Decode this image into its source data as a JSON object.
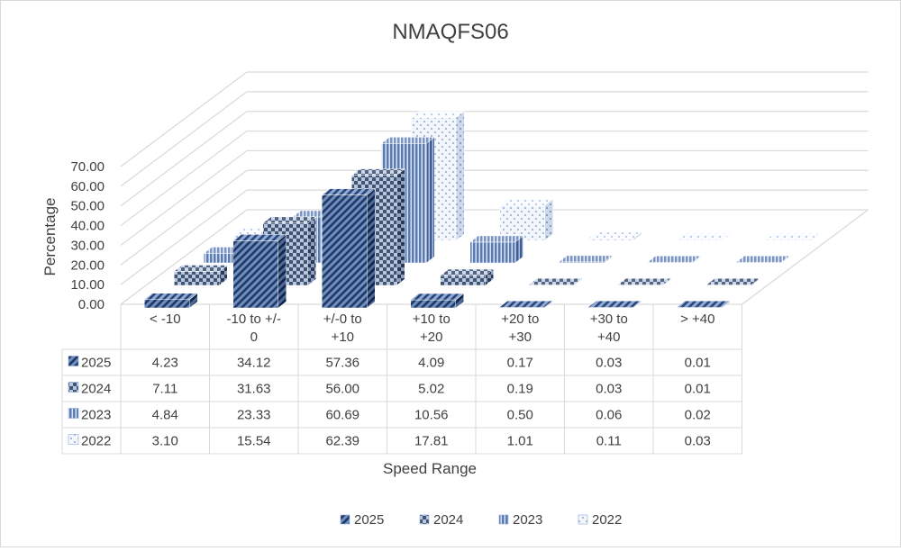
{
  "chart_data": {
    "type": "bar",
    "variant": "3d-clustered-column-with-data-table",
    "title": "NMAQFS06",
    "xlabel": "Speed Range",
    "ylabel": "Percentage",
    "ylim": [
      0,
      70
    ],
    "yticks": [
      "0.00",
      "10.00",
      "20.00",
      "30.00",
      "40.00",
      "50.00",
      "60.00",
      "70.00"
    ],
    "categories": [
      "< -10",
      "-10 to +/-0",
      "+/-0 to +10",
      "+10 to +20",
      "+20 to +30",
      "+30 to +40",
      "> +40"
    ],
    "category_lines": [
      [
        "< -10"
      ],
      [
        "-10 to +/-",
        "0"
      ],
      [
        "+/-0 to",
        "+10"
      ],
      [
        "+10 to",
        "+20"
      ],
      [
        "+20 to",
        "+30"
      ],
      [
        "+30 to",
        "+40"
      ],
      [
        "> +40"
      ]
    ],
    "series": [
      {
        "name": "2025",
        "values": [
          4.23,
          34.12,
          57.36,
          4.09,
          0.17,
          0.03,
          0.01
        ],
        "display": [
          "4.23",
          "34.12",
          "57.36",
          "4.09",
          "0.17",
          "0.03",
          "0.01"
        ],
        "pattern": "diagonal",
        "color": "#203864"
      },
      {
        "name": "2024",
        "values": [
          7.11,
          31.63,
          56.0,
          5.02,
          0.19,
          0.03,
          0.01
        ],
        "display": [
          "7.11",
          "31.63",
          "56.00",
          "5.02",
          "0.19",
          "0.03",
          "0.01"
        ],
        "pattern": "checker",
        "color": "#44546a"
      },
      {
        "name": "2023",
        "values": [
          4.84,
          23.33,
          60.69,
          10.56,
          0.5,
          0.06,
          0.02
        ],
        "display": [
          "4.84",
          "23.33",
          "60.69",
          "10.56",
          "0.50",
          "0.06",
          "0.02"
        ],
        "pattern": "vertical-stripes",
        "color": "#8faadc"
      },
      {
        "name": "2022",
        "values": [
          3.1,
          15.54,
          62.39,
          17.81,
          1.01,
          0.11,
          0.03
        ],
        "display": [
          "3.10",
          "15.54",
          "62.39",
          "17.81",
          "1.01",
          "0.11",
          "0.03"
        ],
        "pattern": "dots",
        "color": "#dae3f3"
      }
    ],
    "grid": true,
    "legend_position": "bottom",
    "data_table": true
  }
}
